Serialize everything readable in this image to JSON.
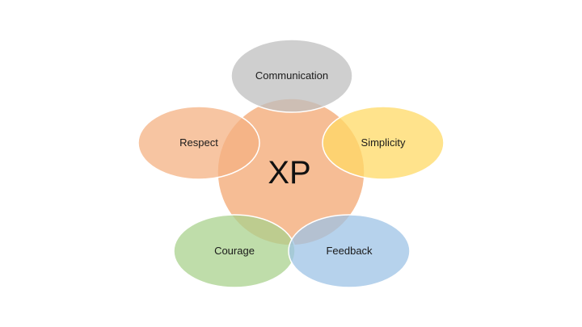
{
  "diagram": {
    "center": {
      "label": "XP",
      "color": "#f4b183"
    },
    "petals": [
      {
        "id": "communication",
        "label": "Communication",
        "color": "#bfbfbf"
      },
      {
        "id": "respect",
        "label": "Respect",
        "color": "#f4b183"
      },
      {
        "id": "simplicity",
        "label": "Simplicity",
        "color": "#ffd966"
      },
      {
        "id": "courage",
        "label": "Courage",
        "color": "#a9d18e"
      },
      {
        "id": "feedback",
        "label": "Feedback",
        "color": "#9dc3e6"
      }
    ]
  }
}
